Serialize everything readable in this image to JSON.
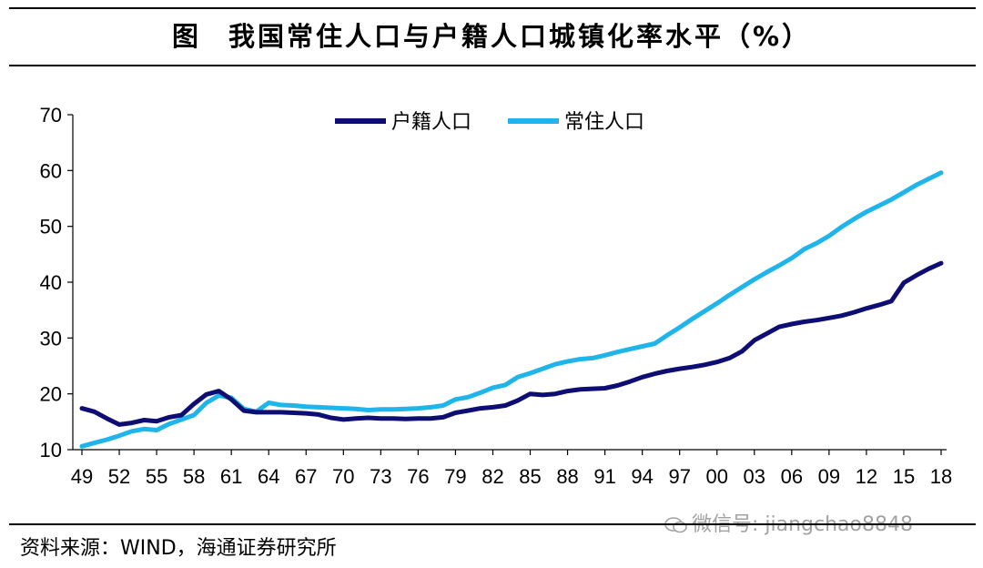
{
  "header": {
    "figure_label": "图",
    "title": "我国常住人口与户籍人口城镇化率水平（%）"
  },
  "source": "资料来源：WIND，海通证券研究所",
  "watermark": "微信号: jiangchao8848",
  "chart_data": {
    "type": "line",
    "title": "我国常住人口与户籍人口城镇化率水平（%）",
    "xlabel": "",
    "ylabel": "",
    "ylim": [
      10,
      70
    ],
    "yticks": [
      "10",
      "20",
      "30",
      "40",
      "50",
      "60",
      "70"
    ],
    "xticks": [
      "49",
      "52",
      "55",
      "58",
      "61",
      "64",
      "67",
      "70",
      "73",
      "76",
      "79",
      "82",
      "85",
      "88",
      "91",
      "94",
      "97",
      "00",
      "03",
      "06",
      "09",
      "12",
      "15",
      "18"
    ],
    "x": [
      1949,
      1950,
      1951,
      1952,
      1953,
      1954,
      1955,
      1956,
      1957,
      1958,
      1959,
      1960,
      1961,
      1962,
      1963,
      1964,
      1965,
      1966,
      1967,
      1968,
      1969,
      1970,
      1971,
      1972,
      1973,
      1974,
      1975,
      1976,
      1977,
      1978,
      1979,
      1980,
      1981,
      1982,
      1983,
      1984,
      1985,
      1986,
      1987,
      1988,
      1989,
      1990,
      1991,
      1992,
      1993,
      1994,
      1995,
      1996,
      1997,
      1998,
      1999,
      2000,
      2001,
      2002,
      2003,
      2004,
      2005,
      2006,
      2007,
      2008,
      2009,
      2010,
      2011,
      2012,
      2013,
      2014,
      2015,
      2016,
      2017,
      2018
    ],
    "grid": false,
    "legend": "top-center",
    "series": [
      {
        "name": "户籍人口",
        "color": "#0d0d73",
        "values": [
          17.4,
          16.8,
          15.6,
          14.5,
          14.8,
          15.3,
          15.1,
          15.8,
          16.2,
          18.2,
          19.9,
          20.5,
          19.0,
          17.0,
          16.7,
          16.7,
          16.7,
          16.6,
          16.5,
          16.3,
          15.7,
          15.4,
          15.6,
          15.7,
          15.6,
          15.6,
          15.5,
          15.6,
          15.6,
          15.8,
          16.6,
          17.0,
          17.4,
          17.6,
          17.9,
          18.8,
          20.0,
          19.8,
          20.0,
          20.5,
          20.8,
          20.9,
          21.0,
          21.5,
          22.2,
          23.0,
          23.6,
          24.1,
          24.5,
          24.8,
          25.2,
          25.7,
          26.4,
          27.6,
          29.6,
          30.8,
          32.0,
          32.5,
          32.9,
          33.2,
          33.6,
          34.0,
          34.6,
          35.3,
          35.9,
          36.6,
          39.9,
          41.2,
          42.4,
          43.4
        ]
      },
      {
        "name": "常住人口",
        "color": "#1fb4ea",
        "values": [
          10.6,
          11.2,
          11.8,
          12.5,
          13.3,
          13.7,
          13.5,
          14.6,
          15.4,
          16.2,
          18.4,
          19.7,
          19.3,
          17.3,
          16.8,
          18.4,
          18.0,
          17.9,
          17.7,
          17.6,
          17.5,
          17.4,
          17.3,
          17.1,
          17.2,
          17.2,
          17.3,
          17.4,
          17.6,
          17.9,
          19.0,
          19.4,
          20.2,
          21.1,
          21.6,
          23.0,
          23.7,
          24.5,
          25.3,
          25.8,
          26.2,
          26.4,
          26.9,
          27.5,
          28.0,
          28.5,
          29.0,
          30.5,
          31.9,
          33.4,
          34.8,
          36.2,
          37.7,
          39.1,
          40.5,
          41.8,
          43.0,
          44.3,
          45.9,
          47.0,
          48.3,
          49.9,
          51.3,
          52.6,
          53.7,
          54.8,
          56.1,
          57.4,
          58.5,
          59.6
        ]
      }
    ]
  }
}
